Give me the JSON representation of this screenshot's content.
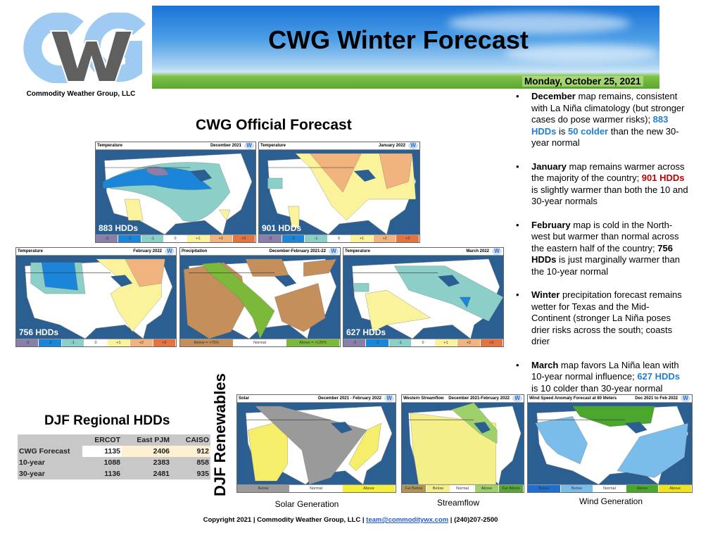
{
  "header": {
    "company": "Commodity Weather Group, LLC",
    "title": "CWG Winter Forecast",
    "date": "Monday, October 25, 2021",
    "logo_text": "CWG"
  },
  "official": {
    "title": "CWG Official Forecast"
  },
  "temp_legend": [
    "-3",
    "-2",
    "-1",
    "0",
    "+1",
    "+2",
    "+3"
  ],
  "temp_legend_colors": [
    "#8a7fa8",
    "#1b86d9",
    "#8ccfc8",
    "#ffffff",
    "#fbf39b",
    "#f1b47e",
    "#e5733f"
  ],
  "maps": {
    "dec": {
      "type": "Temperature",
      "period": "December 2021",
      "hdd": "883 HDDs"
    },
    "jan": {
      "type": "Temperature",
      "period": "January 2022",
      "hdd": "901 HDDs"
    },
    "feb": {
      "type": "Temperature",
      "period": "February 2022",
      "hdd": "756 HDDs"
    },
    "precip": {
      "type": "Precipitation",
      "period": "December-February 2021-22",
      "legend": [
        "Below = <75%",
        "Normal",
        "Above = >125%"
      ]
    },
    "mar": {
      "type": "Temperature",
      "period": "March 2022",
      "hdd": "627 HDDs"
    },
    "solar": {
      "type": "Solar",
      "period": "December 2021 - February 2022",
      "legend": [
        "Below",
        "Normal",
        "Above"
      ],
      "caption": "Solar Generation"
    },
    "stream": {
      "type": "Western Streamflow",
      "period": "December 2021-February 2022",
      "legend": [
        "Far Below",
        "Below",
        "Normal",
        "Above",
        "Far Above"
      ],
      "caption": "Streamflow"
    },
    "wind": {
      "type": "Wind Speed Anomaly Forecast at 80 Meters",
      "period": "Dec 2021 to Feb 2022",
      "legend": [
        "Below",
        "Below",
        "Normal",
        "Above",
        "Above"
      ],
      "caption": "Wind Generation"
    }
  },
  "bullets": [
    {
      "lead": "December",
      "t1": " map remains, consistent with La Niña climatology (but stronger cases do pose warmer risks); ",
      "hl": "883 HDDs",
      "t2": " is ",
      "hl2": "50 colder",
      "t3": " than the new 30-year normal"
    },
    {
      "lead": "January",
      "t1": " map remains warmer across the majority of the country; ",
      "hl": "901 HDDs",
      "t2": " is slightly warmer than both the 10 and 30-year normals"
    },
    {
      "lead": "February",
      "t1": " map is cold in the North-west but warmer than normal across the eastern half of the country; ",
      "hl": "756 HDDs",
      "t2": " is just marginally warmer than the 10-year normal"
    },
    {
      "lead": "Winter",
      "t1": " precipitation forecast remains wetter for Texas and the Mid-Continent (stronger La Niña poses drier risks across the south; coasts drier"
    },
    {
      "lead": "March",
      "t1": " map favors La Niña lean with 10-year normal influence; ",
      "hl": "627 HDDs",
      "t2": " is 10 colder than 30-year normal"
    }
  ],
  "hdd_table": {
    "title": "DJF Regional HDDs",
    "columns": [
      "",
      "ERCOT",
      "East PJM",
      "CAISO"
    ],
    "rows": [
      [
        "CWG Forecast",
        "1135",
        "2406",
        "912"
      ],
      [
        "10-year",
        "1088",
        "2383",
        "858"
      ],
      [
        "30-year",
        "1136",
        "2481",
        "935"
      ]
    ]
  },
  "renewables": {
    "title": "DJF Renewables"
  },
  "footer": {
    "pre": "Copyright 2021 | Commodity Weather Group, LLC | ",
    "email": "team@commoditywx.com",
    "post": " | (240)207-2500"
  }
}
